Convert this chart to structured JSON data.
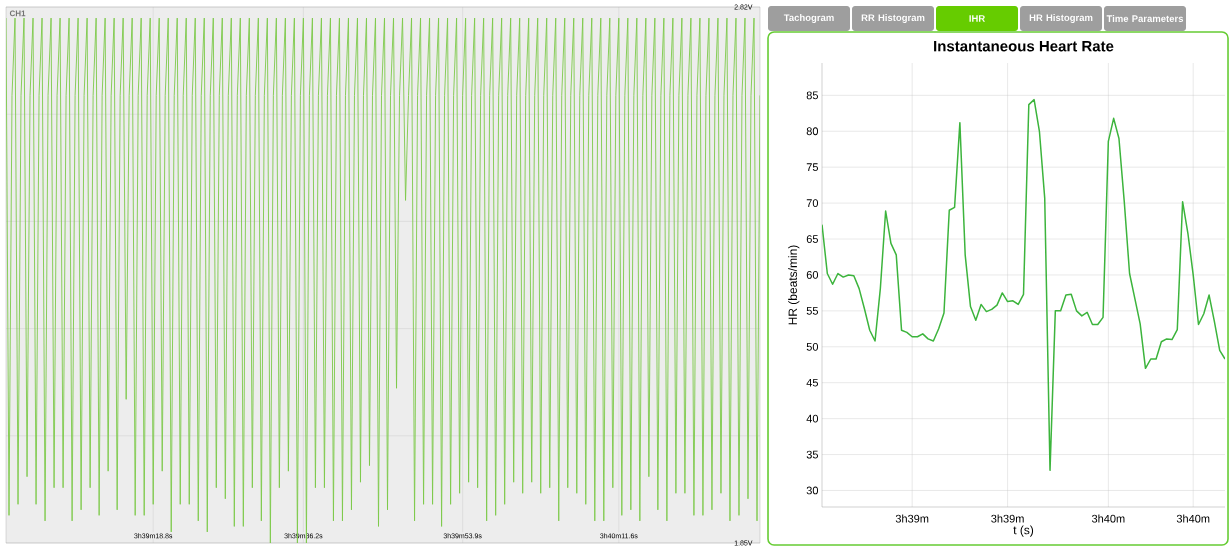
{
  "chart_data": [
    {
      "type": "line",
      "grid": true,
      "ylim": [
        1.85,
        2.82
      ],
      "yticks": [
        {
          "value": 1.85,
          "label": "1.85V"
        },
        {
          "value": 2.044,
          "label": null
        },
        {
          "value": 2.238,
          "label": null
        },
        {
          "value": 2.432,
          "label": null
        },
        {
          "value": 2.626,
          "label": null
        },
        {
          "value": 2.82,
          "label": "2.82V"
        }
      ],
      "categories": [
        null,
        null,
        null,
        null,
        null,
        null,
        null,
        null,
        null,
        null,
        null,
        null,
        null,
        null,
        null,
        null,
        null,
        null,
        null,
        null,
        null,
        null,
        null,
        null,
        null,
        null,
        null,
        null,
        null,
        null,
        null,
        null,
        null,
        null,
        null,
        null,
        null,
        null,
        null,
        null,
        null,
        null,
        null,
        null,
        null,
        null,
        null,
        null,
        null,
        "3h39m18.8s",
        null,
        null,
        null,
        null,
        null,
        null,
        null,
        null,
        null,
        null,
        null,
        null,
        null,
        null,
        null,
        null,
        null,
        null,
        null,
        null,
        null,
        null,
        null,
        null,
        null,
        null,
        null,
        null,
        null,
        null,
        null,
        null,
        null,
        null,
        null,
        null,
        null,
        null,
        null,
        null,
        null,
        null,
        null,
        null,
        null,
        null,
        null,
        null,
        null,
        "3h39m36.2s",
        null,
        null,
        null,
        null,
        null,
        null,
        null,
        null,
        null,
        null,
        null,
        null,
        null,
        null,
        null,
        null,
        null,
        null,
        null,
        null,
        null,
        null,
        null,
        null,
        null,
        null,
        null,
        null,
        null,
        null,
        null,
        null,
        null,
        null,
        null,
        null,
        null,
        null,
        null,
        null,
        null,
        null,
        null,
        null,
        null,
        null,
        null,
        null,
        null,
        null,
        null,
        null,
        "3h39m53.9s",
        null,
        null,
        null,
        null,
        null,
        null,
        null,
        null,
        null,
        null,
        null,
        null,
        null,
        null,
        null,
        null,
        null,
        null,
        null,
        null,
        null,
        null,
        null,
        null,
        null,
        null,
        null,
        null,
        null,
        null,
        null,
        null,
        null,
        null,
        null,
        null,
        null,
        null,
        null,
        null,
        null,
        null,
        null,
        null,
        null,
        null,
        null,
        null,
        null,
        null,
        null,
        "3h40m11.6s",
        null,
        null,
        null,
        null,
        null,
        null,
        null,
        null,
        null,
        null,
        null,
        null,
        null,
        null,
        null,
        null,
        null,
        null,
        null,
        null,
        null,
        null,
        null,
        null,
        null,
        null,
        null,
        null,
        null,
        null,
        null,
        null,
        null,
        null,
        null,
        null,
        null,
        null,
        null,
        null,
        null,
        null,
        null,
        null,
        null,
        null,
        null
      ],
      "series": [
        {
          "name": "CH1",
          "color": "#7dc94a",
          "values": [
            2.8,
            1.9,
            2.66,
            2.8,
            1.92,
            2.66,
            2.8,
            1.97,
            2.66,
            2.8,
            1.92,
            2.66,
            2.8,
            1.89,
            2.66,
            2.8,
            1.95,
            2.66,
            2.8,
            1.95,
            2.66,
            2.8,
            1.89,
            2.66,
            2.8,
            1.91,
            2.66,
            2.8,
            1.95,
            2.66,
            2.8,
            1.9,
            2.66,
            2.8,
            1.98,
            2.66,
            2.8,
            1.91,
            2.66,
            2.8,
            2.11,
            2.66,
            2.8,
            1.9,
            2.66,
            2.8,
            1.9,
            2.66,
            2.8,
            1.92,
            2.66,
            2.8,
            1.98,
            2.66,
            2.8,
            1.87,
            2.66,
            2.8,
            1.92,
            2.66,
            2.8,
            1.92,
            2.66,
            2.8,
            1.89,
            2.66,
            2.8,
            1.87,
            2.66,
            2.8,
            1.95,
            2.66,
            2.8,
            1.93,
            2.66,
            2.8,
            1.88,
            2.66,
            2.8,
            1.88,
            2.66,
            2.8,
            1.95,
            2.66,
            2.8,
            1.89,
            2.66,
            2.8,
            1.85,
            2.66,
            2.8,
            1.95,
            2.66,
            2.8,
            1.98,
            2.66,
            2.8,
            1.85,
            2.66,
            2.8,
            1.85,
            2.66,
            2.8,
            1.95,
            2.66,
            2.8,
            1.95,
            2.66,
            2.8,
            1.89,
            2.66,
            2.8,
            1.89,
            2.66,
            2.8,
            1.91,
            2.66,
            2.8,
            1.96,
            2.66,
            2.8,
            1.99,
            2.66,
            2.8,
            1.88,
            2.66,
            2.8,
            1.91,
            2.66,
            2.8,
            2.13,
            2.66,
            2.8,
            2.47,
            2.66,
            2.8,
            1.89,
            2.66,
            2.8,
            1.92,
            2.66,
            2.8,
            1.92,
            2.66,
            2.8,
            1.88,
            2.66,
            2.8,
            1.92,
            2.66,
            2.8,
            1.94,
            2.66,
            2.8,
            1.96,
            2.66,
            2.8,
            1.95,
            2.66,
            2.8,
            1.89,
            2.66,
            2.8,
            1.9,
            2.66,
            2.8,
            1.92,
            2.66,
            2.8,
            1.96,
            2.66,
            2.8,
            1.94,
            2.66,
            2.8,
            1.96,
            2.66,
            2.8,
            1.94,
            2.66,
            2.8,
            1.95,
            2.66,
            2.8,
            1.89,
            2.66,
            2.8,
            1.95,
            2.66,
            2.8,
            1.94,
            2.66,
            2.8,
            1.92,
            2.66,
            2.8,
            1.89,
            2.66,
            2.8,
            1.89,
            2.66,
            2.8,
            1.95,
            2.66,
            2.8,
            1.9,
            2.66,
            2.8,
            1.91,
            2.66,
            2.8,
            1.89,
            2.66,
            2.8,
            1.97,
            2.66,
            2.8,
            1.91,
            2.66,
            2.8,
            1.89,
            2.66,
            2.8,
            1.94,
            2.66,
            2.8,
            1.94,
            2.66,
            2.8,
            1.9,
            2.66,
            2.8,
            1.9,
            2.66,
            2.8,
            1.91,
            2.66,
            2.8,
            1.94,
            2.66,
            2.8,
            1.89,
            2.66,
            2.8,
            1.9,
            2.66,
            2.8,
            1.93,
            2.66,
            2.8,
            1.89,
            2.66
          ]
        }
      ]
    },
    {
      "type": "line",
      "title": "Instantaneous Heart Rate",
      "xlabel": "t (s)",
      "ylabel": "HR (beats/min)",
      "grid": true,
      "color": "#3cb43c",
      "annotations": [
        "Tachogram",
        "RR Histogram",
        "IHR",
        "HR Histogram",
        "Time Parameters"
      ],
      "ylim": [
        27.7,
        89.5
      ],
      "yticks": [
        30,
        35,
        40,
        45,
        50,
        55,
        60,
        65,
        70,
        75,
        80,
        85
      ],
      "categories": [
        null,
        null,
        null,
        null,
        null,
        null,
        null,
        null,
        null,
        null,
        null,
        null,
        null,
        null,
        null,
        null,
        null,
        "3h39m",
        null,
        null,
        null,
        null,
        null,
        null,
        null,
        null,
        null,
        null,
        null,
        null,
        null,
        null,
        null,
        null,
        null,
        "3h39m",
        null,
        null,
        null,
        null,
        null,
        null,
        null,
        null,
        null,
        null,
        null,
        null,
        null,
        null,
        null,
        null,
        null,
        null,
        "3h40m",
        null,
        null,
        null,
        null,
        null,
        null,
        null,
        null,
        null,
        null,
        null,
        null,
        null,
        null,
        null,
        "3h40m",
        null,
        null,
        null,
        null,
        null,
        null
      ],
      "values": [
        67.0,
        60.2,
        58.7,
        60.2,
        59.7,
        60.0,
        59.9,
        58.1,
        55.3,
        52.3,
        50.8,
        58.1,
        68.9,
        64.4,
        62.8,
        52.3,
        52.0,
        51.4,
        51.4,
        51.8,
        51.1,
        50.8,
        52.5,
        54.7,
        69.0,
        69.4,
        81.2,
        62.8,
        55.6,
        53.7,
        55.9,
        54.9,
        55.2,
        55.8,
        57.5,
        56.3,
        56.4,
        55.9,
        57.3,
        83.7,
        84.4,
        80.0,
        70.7,
        32.8,
        55.0,
        55.0,
        57.2,
        57.3,
        55.0,
        54.3,
        54.8,
        53.1,
        53.1,
        54.1,
        78.6,
        81.8,
        79.0,
        70.2,
        60.2,
        56.7,
        53.2,
        47.0,
        48.3,
        48.3,
        50.7,
        51.1,
        51.0,
        52.4,
        70.2,
        65.8,
        60.0,
        53.1,
        54.6,
        57.2,
        53.5,
        49.5,
        48.3
      ]
    }
  ]
}
